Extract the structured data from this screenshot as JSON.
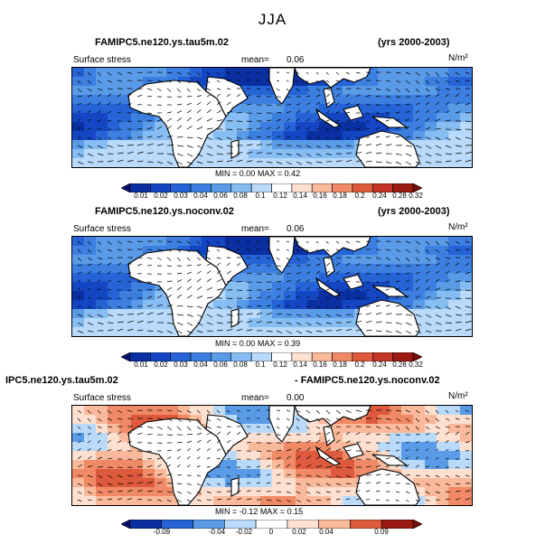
{
  "season": "JJA",
  "panels": [
    {
      "title_left": "FAMIPC5.ne120.ys.tau5m.02",
      "title_right": "(yrs 2000-2003)",
      "variable": "Surface stress",
      "mean_label": "mean=",
      "mean_value": "0.06",
      "units": "N/m²",
      "stats_min_label": "MIN =",
      "stats_min": "0.00",
      "stats_max_label": "MAX =",
      "stats_max": "0.42",
      "colorbar_ticks": [
        "0.01",
        "0.02",
        "0.03",
        "0.04",
        "0.06",
        "0.08",
        "0.1",
        "0.12",
        "0.14",
        "0.16",
        "0.18",
        "0.2",
        "0.24",
        "0.28",
        "0.32"
      ]
    },
    {
      "title_left": "FAMIPC5.ne120.ys.noconv.02",
      "title_right": "(yrs 2000-2003)",
      "variable": "Surface stress",
      "mean_label": "mean=",
      "mean_value": "0.06",
      "units": "N/m²",
      "stats_min_label": "MIN =",
      "stats_min": "0.00",
      "stats_max_label": "MAX =",
      "stats_max": "0.39",
      "colorbar_ticks": [
        "0.01",
        "0.02",
        "0.03",
        "0.04",
        "0.06",
        "0.08",
        "0.1",
        "0.12",
        "0.14",
        "0.16",
        "0.18",
        "0.2",
        "0.24",
        "0.28",
        "0.32"
      ]
    },
    {
      "title_left": "IPC5.ne120.ys.tau5m.02",
      "title_right": "- FAMIPC5.ne120.ys.noconv.02",
      "variable": "Surface stress",
      "mean_label": "mean=",
      "mean_value": "0.00",
      "units": "N/m²",
      "stats_min_label": "MIN =",
      "stats_min": "-0.12",
      "stats_max_label": "MAX =",
      "stats_max": "0.15",
      "colorbar_ticks": [
        "-0.09",
        "-0.04",
        "-0.02",
        "0",
        "0.02",
        "0.04",
        "0.09"
      ]
    }
  ],
  "chart_data": [
    {
      "type": "heatmap",
      "title": "FAMIPC5.ne120.ys.tau5m.02 (yrs 2000-2003)",
      "variable": "Surface stress",
      "units": "N/m^2",
      "mean": 0.06,
      "min": 0.0,
      "max": 0.42,
      "levels": [
        0.01,
        0.02,
        0.03,
        0.04,
        0.06,
        0.08,
        0.1,
        0.12,
        0.14,
        0.16,
        0.18,
        0.2,
        0.24,
        0.28,
        0.32
      ],
      "colors": [
        "#08106e",
        "#0a2fa0",
        "#1446c4",
        "#2563d6",
        "#3d7fe0",
        "#5a9be8",
        "#86bdf2",
        "#b9dafa",
        "#ffffff",
        "#fde0cf",
        "#f9b99a",
        "#f08a66",
        "#de5a3c",
        "#c23524",
        "#9c1a13",
        "#7a0c0a"
      ]
    },
    {
      "type": "heatmap",
      "title": "FAMIPC5.ne120.ys.noconv.02 (yrs 2000-2003)",
      "variable": "Surface stress",
      "units": "N/m^2",
      "mean": 0.06,
      "min": 0.0,
      "max": 0.39,
      "levels": [
        0.01,
        0.02,
        0.03,
        0.04,
        0.06,
        0.08,
        0.1,
        0.12,
        0.14,
        0.16,
        0.18,
        0.2,
        0.24,
        0.28,
        0.32
      ],
      "colors": [
        "#08106e",
        "#0a2fa0",
        "#1446c4",
        "#2563d6",
        "#3d7fe0",
        "#5a9be8",
        "#86bdf2",
        "#b9dafa",
        "#ffffff",
        "#fde0cf",
        "#f9b99a",
        "#f08a66",
        "#de5a3c",
        "#c23524",
        "#9c1a13",
        "#7a0c0a"
      ]
    },
    {
      "type": "heatmap",
      "title": "IPC5.ne120.ys.tau5m.02 - FAMIPC5.ne120.ys.noconv.02",
      "variable": "Surface stress",
      "units": "N/m^2",
      "mean": 0.0,
      "min": -0.12,
      "max": 0.15,
      "levels": [
        -0.09,
        -0.04,
        -0.02,
        0,
        0.02,
        0.04,
        0.09
      ],
      "colors": [
        "#08106e",
        "#0a2fa0",
        "#2563d6",
        "#5a9be8",
        "#b9dafa",
        "#ffffff",
        "#fde0cf",
        "#f9b99a",
        "#de5a3c",
        "#9c1a13",
        "#7a0c0a"
      ]
    }
  ]
}
